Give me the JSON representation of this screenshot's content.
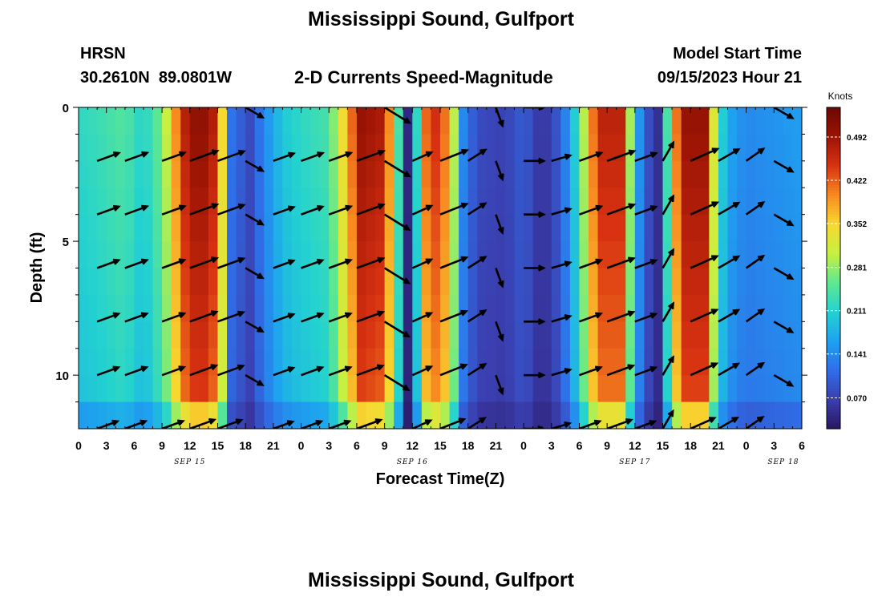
{
  "header": {
    "title": "Mississippi Sound, Gulfport",
    "station_id": "HRSN",
    "station_coords": "30.2610N  89.0801W",
    "subtitle": "2-D Currents Speed-Magnitude",
    "model_start_label": "Model Start Time",
    "model_start_value": "09/15/2023 Hour 21"
  },
  "footer": {
    "title": "Mississippi Sound, Gulfport"
  },
  "chart_data": {
    "type": "heatmap",
    "title": "2-D Currents Speed-Magnitude",
    "xlabel": "Forecast Time(Z)",
    "ylabel": "Depth (ft)",
    "x_unit": "hours from Sep 15 00Z",
    "xlim": [
      0,
      78
    ],
    "ylim": [
      0,
      12
    ],
    "y_inverted": true,
    "x_ticks": [
      {
        "v": 0,
        "t": "0"
      },
      {
        "v": 3,
        "t": "3"
      },
      {
        "v": 6,
        "t": "6"
      },
      {
        "v": 9,
        "t": "9"
      },
      {
        "v": 12,
        "t": "12"
      },
      {
        "v": 15,
        "t": "15"
      },
      {
        "v": 18,
        "t": "18"
      },
      {
        "v": 21,
        "t": "21"
      },
      {
        "v": 24,
        "t": "0"
      },
      {
        "v": 27,
        "t": "3"
      },
      {
        "v": 30,
        "t": "6"
      },
      {
        "v": 33,
        "t": "9"
      },
      {
        "v": 36,
        "t": "12"
      },
      {
        "v": 39,
        "t": "15"
      },
      {
        "v": 42,
        "t": "18"
      },
      {
        "v": 45,
        "t": "21"
      },
      {
        "v": 48,
        "t": "0"
      },
      {
        "v": 51,
        "t": "3"
      },
      {
        "v": 54,
        "t": "6"
      },
      {
        "v": 57,
        "t": "9"
      },
      {
        "v": 60,
        "t": "12"
      },
      {
        "v": 63,
        "t": "15"
      },
      {
        "v": 66,
        "t": "18"
      },
      {
        "v": 69,
        "t": "21"
      },
      {
        "v": 72,
        "t": "0"
      },
      {
        "v": 75,
        "t": "3"
      },
      {
        "v": 78,
        "t": "6"
      }
    ],
    "day_labels": [
      {
        "v": 12,
        "t": "SEP 15"
      },
      {
        "v": 36,
        "t": "SEP 16"
      },
      {
        "v": 60,
        "t": "SEP 17"
      },
      {
        "v": 76,
        "t": "SEP 18"
      }
    ],
    "y_ticks": [
      {
        "v": 0,
        "t": "0"
      },
      {
        "v": 5,
        "t": "5"
      },
      {
        "v": 10,
        "t": "10"
      }
    ],
    "colorbar": {
      "label": "Knots",
      "min": 0.02,
      "max": 0.54,
      "ticks": [
        "0.070",
        "0.141",
        "0.211",
        "0.281",
        "0.352",
        "0.422",
        "0.492"
      ],
      "tick_values": [
        0.07,
        0.141,
        0.211,
        0.281,
        0.352,
        0.422,
        0.492
      ]
    },
    "colormap": [
      "#2a1763",
      "#3b3fb0",
      "#2f6ee8",
      "#1ea2f0",
      "#23d2d0",
      "#5ee890",
      "#c8f040",
      "#f8d830",
      "#f88a20",
      "#d83212",
      "#9c1404",
      "#6a0802"
    ],
    "speed_profile_by_hour": [
      {
        "t": 0,
        "s": 0.22
      },
      {
        "t": 2,
        "s": 0.23
      },
      {
        "t": 5,
        "s": 0.25
      },
      {
        "t": 7,
        "s": 0.21
      },
      {
        "t": 9,
        "s": 0.27
      },
      {
        "t": 10,
        "s": 0.34
      },
      {
        "t": 11,
        "s": 0.46
      },
      {
        "t": 13,
        "s": 0.52
      },
      {
        "t": 14.8,
        "s": 0.47
      },
      {
        "t": 15.8,
        "s": 0.3
      },
      {
        "t": 16.5,
        "s": 0.12
      },
      {
        "t": 18.5,
        "s": 0.08
      },
      {
        "t": 20,
        "s": 0.14
      },
      {
        "t": 22,
        "s": 0.2
      },
      {
        "t": 24,
        "s": 0.22
      },
      {
        "t": 27,
        "s": 0.24
      },
      {
        "t": 29,
        "s": 0.38
      },
      {
        "t": 30.5,
        "s": 0.5
      },
      {
        "t": 33,
        "s": 0.48
      },
      {
        "t": 34.5,
        "s": 0.24
      },
      {
        "t": 35.5,
        "s": 0.04
      },
      {
        "t": 36.5,
        "s": 0.22
      },
      {
        "t": 37.5,
        "s": 0.42
      },
      {
        "t": 39,
        "s": 0.47
      },
      {
        "t": 40.5,
        "s": 0.3
      },
      {
        "t": 41.5,
        "s": 0.14
      },
      {
        "t": 43,
        "s": 0.08
      },
      {
        "t": 46,
        "s": 0.07
      },
      {
        "t": 48,
        "s": 0.1
      },
      {
        "t": 50,
        "s": 0.05
      },
      {
        "t": 52,
        "s": 0.1
      },
      {
        "t": 54,
        "s": 0.24
      },
      {
        "t": 56,
        "s": 0.47
      },
      {
        "t": 58.5,
        "s": 0.47
      },
      {
        "t": 60,
        "s": 0.2
      },
      {
        "t": 61,
        "s": 0.1
      },
      {
        "t": 62.5,
        "s": 0.05
      },
      {
        "t": 63.5,
        "s": 0.24
      },
      {
        "t": 65,
        "s": 0.5
      },
      {
        "t": 67.5,
        "s": 0.5
      },
      {
        "t": 69,
        "s": 0.24
      },
      {
        "t": 70,
        "s": 0.17
      },
      {
        "t": 72,
        "s": 0.14
      },
      {
        "t": 75,
        "s": 0.15
      },
      {
        "t": 78,
        "s": 0.16
      }
    ],
    "direction_profile_by_hour": [
      {
        "t": 0,
        "d": 20
      },
      {
        "t": 5,
        "d": 20
      },
      {
        "t": 9,
        "d": 20
      },
      {
        "t": 15,
        "d": 20
      },
      {
        "t": 16.5,
        "d": -80
      },
      {
        "t": 18,
        "d": -30
      },
      {
        "t": 21,
        "d": 20
      },
      {
        "t": 30,
        "d": 20
      },
      {
        "t": 32,
        "d": 25
      },
      {
        "t": 33.5,
        "d": -60
      },
      {
        "t": 35,
        "d": 25
      },
      {
        "t": 41,
        "d": 20
      },
      {
        "t": 43,
        "d": 45
      },
      {
        "t": 45,
        "d": -70
      },
      {
        "t": 48,
        "d": 0
      },
      {
        "t": 50,
        "d": 15
      },
      {
        "t": 54,
        "d": 20
      },
      {
        "t": 60,
        "d": 20
      },
      {
        "t": 62.5,
        "d": 80
      },
      {
        "t": 64,
        "d": 20
      },
      {
        "t": 69,
        "d": 30
      },
      {
        "t": 71,
        "d": 70
      },
      {
        "t": 73,
        "d": 0
      },
      {
        "t": 77,
        "d": -60
      },
      {
        "t": 78,
        "d": 45
      }
    ],
    "vector_columns": [
      2,
      5,
      9,
      12,
      15,
      18,
      21,
      24,
      27,
      30,
      33,
      36,
      39,
      42,
      45,
      48,
      51,
      54,
      57,
      60,
      63,
      66,
      69,
      72,
      75,
      78
    ],
    "vector_depths": [
      0,
      2,
      4,
      6,
      8,
      10,
      12
    ]
  }
}
